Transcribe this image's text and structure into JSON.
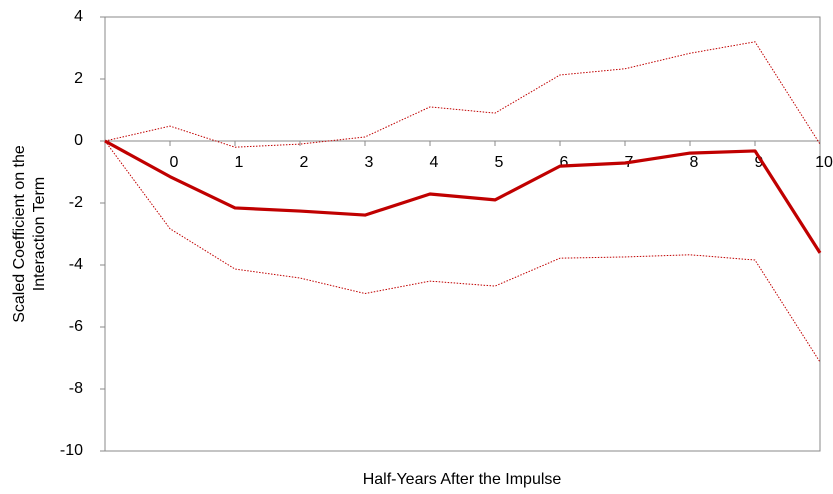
{
  "chart_data": {
    "type": "line",
    "xlabel": "Half-Years After the Impulse",
    "ylabel": [
      "Scaled Coefficient on the",
      "Interaction Term"
    ],
    "categories": [
      null,
      "0",
      "1",
      "2",
      "3",
      "4",
      "5",
      "6",
      "7",
      "8",
      "9",
      "10"
    ],
    "series": [
      {
        "color": "#c00000",
        "style": "solid",
        "values": [
          0,
          -1.15,
          -2.16,
          -2.26,
          -2.39,
          -1.71,
          -1.9,
          -0.81,
          -0.71,
          -0.39,
          -0.32,
          -3.61
        ]
      },
      {
        "color": "#c00000",
        "style": "dotted",
        "values": [
          0,
          0.48,
          -0.2,
          -0.1,
          0.13,
          1.1,
          0.9,
          2.13,
          2.33,
          2.83,
          3.2,
          -0.1
        ]
      },
      {
        "color": "#c00000",
        "style": "dotted",
        "values": [
          0,
          -2.83,
          -4.13,
          -4.42,
          -4.92,
          -4.52,
          -4.68,
          -3.78,
          -3.74,
          -3.67,
          -3.84,
          -7.13
        ]
      }
    ],
    "ylim": [
      -10,
      4
    ],
    "yticks": [
      -10,
      -8,
      -6,
      -4,
      -2,
      0,
      2,
      4
    ],
    "grid": false
  }
}
